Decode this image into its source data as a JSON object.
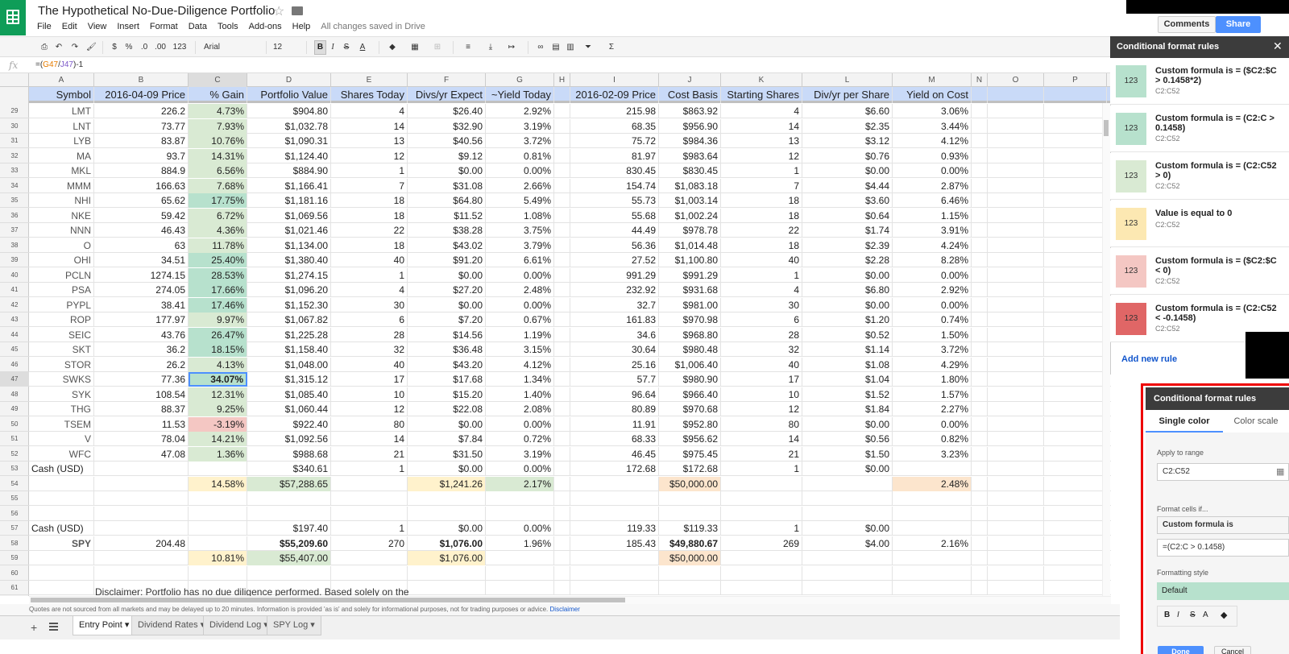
{
  "title": "The Hypothetical No-Due-Diligence Portfolio",
  "menu": [
    "File",
    "Edit",
    "View",
    "Insert",
    "Format",
    "Data",
    "Tools",
    "Add-ons",
    "Help"
  ],
  "save_status": "All changes saved in Drive",
  "comments_label": "Comments",
  "share_label": "Share",
  "toolbar": {
    "currency": "$",
    "percent": "%",
    "dec_less": ".0",
    "dec_more": ".00",
    "format_more": "123",
    "font": "Arial",
    "size": "12",
    "bold": "B",
    "italic": "I",
    "strike": "S",
    "textcolor": "A"
  },
  "formula_bar": {
    "fx": "fx",
    "eq": "=(",
    "ref1": "G47",
    "slash": "/",
    "ref2": "J47",
    "rest": ")-1"
  },
  "columns": [
    "A",
    "B",
    "C",
    "D",
    "E",
    "F",
    "G",
    "H",
    "I",
    "J",
    "K",
    "L",
    "M",
    "N",
    "O",
    "P"
  ],
  "header_row": [
    "Symbol",
    "2016-04-09 Price",
    "% Gain",
    "Portfolio Value",
    "Shares Today",
    "Divs/yr Expect",
    "~Yield Today",
    "",
    "2016-02-09 Price",
    "Cost Basis",
    "Starting Shares",
    "Div/yr per Share",
    "Yield on Cost"
  ],
  "rows": [
    {
      "n": "29",
      "c": [
        "LMT",
        "226.2",
        "4.73%",
        "$904.80",
        "4",
        "$26.40",
        "2.92%",
        "",
        "215.98",
        "$863.92",
        "4",
        "$6.60",
        "3.06%"
      ]
    },
    {
      "n": "30",
      "c": [
        "LNT",
        "73.77",
        "7.93%",
        "$1,032.78",
        "14",
        "$32.90",
        "3.19%",
        "",
        "68.35",
        "$956.90",
        "14",
        "$2.35",
        "3.44%"
      ]
    },
    {
      "n": "31",
      "c": [
        "LYB",
        "83.87",
        "10.76%",
        "$1,090.31",
        "13",
        "$40.56",
        "3.72%",
        "",
        "75.72",
        "$984.36",
        "13",
        "$3.12",
        "4.12%"
      ]
    },
    {
      "n": "32",
      "c": [
        "MA",
        "93.7",
        "14.31%",
        "$1,124.40",
        "12",
        "$9.12",
        "0.81%",
        "",
        "81.97",
        "$983.64",
        "12",
        "$0.76",
        "0.93%"
      ]
    },
    {
      "n": "33",
      "c": [
        "MKL",
        "884.9",
        "6.56%",
        "$884.90",
        "1",
        "$0.00",
        "0.00%",
        "",
        "830.45",
        "$830.45",
        "1",
        "$0.00",
        "0.00%"
      ]
    },
    {
      "n": "34",
      "c": [
        "MMM",
        "166.63",
        "7.68%",
        "$1,166.41",
        "7",
        "$31.08",
        "2.66%",
        "",
        "154.74",
        "$1,083.18",
        "7",
        "$4.44",
        "2.87%"
      ]
    },
    {
      "n": "35",
      "c": [
        "NHI",
        "65.62",
        "17.75%",
        "$1,181.16",
        "18",
        "$64.80",
        "5.49%",
        "",
        "55.73",
        "$1,003.14",
        "18",
        "$3.60",
        "6.46%"
      ]
    },
    {
      "n": "36",
      "c": [
        "NKE",
        "59.42",
        "6.72%",
        "$1,069.56",
        "18",
        "$11.52",
        "1.08%",
        "",
        "55.68",
        "$1,002.24",
        "18",
        "$0.64",
        "1.15%"
      ]
    },
    {
      "n": "37",
      "c": [
        "NNN",
        "46.43",
        "4.36%",
        "$1,021.46",
        "22",
        "$38.28",
        "3.75%",
        "",
        "44.49",
        "$978.78",
        "22",
        "$1.74",
        "3.91%"
      ]
    },
    {
      "n": "38",
      "c": [
        "O",
        "63",
        "11.78%",
        "$1,134.00",
        "18",
        "$43.02",
        "3.79%",
        "",
        "56.36",
        "$1,014.48",
        "18",
        "$2.39",
        "4.24%"
      ]
    },
    {
      "n": "39",
      "c": [
        "OHI",
        "34.51",
        "25.40%",
        "$1,380.40",
        "40",
        "$91.20",
        "6.61%",
        "",
        "27.52",
        "$1,100.80",
        "40",
        "$2.28",
        "8.28%"
      ]
    },
    {
      "n": "40",
      "c": [
        "PCLN",
        "1274.15",
        "28.53%",
        "$1,274.15",
        "1",
        "$0.00",
        "0.00%",
        "",
        "991.29",
        "$991.29",
        "1",
        "$0.00",
        "0.00%"
      ]
    },
    {
      "n": "41",
      "c": [
        "PSA",
        "274.05",
        "17.66%",
        "$1,096.20",
        "4",
        "$27.20",
        "2.48%",
        "",
        "232.92",
        "$931.68",
        "4",
        "$6.80",
        "2.92%"
      ]
    },
    {
      "n": "42",
      "c": [
        "PYPL",
        "38.41",
        "17.46%",
        "$1,152.30",
        "30",
        "$0.00",
        "0.00%",
        "",
        "32.7",
        "$981.00",
        "30",
        "$0.00",
        "0.00%"
      ]
    },
    {
      "n": "43",
      "c": [
        "ROP",
        "177.97",
        "9.97%",
        "$1,067.82",
        "6",
        "$7.20",
        "0.67%",
        "",
        "161.83",
        "$970.98",
        "6",
        "$1.20",
        "0.74%"
      ]
    },
    {
      "n": "44",
      "c": [
        "SEIC",
        "43.76",
        "26.47%",
        "$1,225.28",
        "28",
        "$14.56",
        "1.19%",
        "",
        "34.6",
        "$968.80",
        "28",
        "$0.52",
        "1.50%"
      ]
    },
    {
      "n": "45",
      "c": [
        "SKT",
        "36.2",
        "18.15%",
        "$1,158.40",
        "32",
        "$36.48",
        "3.15%",
        "",
        "30.64",
        "$980.48",
        "32",
        "$1.14",
        "3.72%"
      ]
    },
    {
      "n": "46",
      "c": [
        "STOR",
        "26.2",
        "4.13%",
        "$1,048.00",
        "40",
        "$43.20",
        "4.12%",
        "",
        "25.16",
        "$1,006.40",
        "40",
        "$1.08",
        "4.29%"
      ]
    },
    {
      "n": "47",
      "c": [
        "SWKS",
        "77.36",
        "34.07%",
        "$1,315.12",
        "17",
        "$17.68",
        "1.34%",
        "",
        "57.7",
        "$980.90",
        "17",
        "$1.04",
        "1.80%"
      ]
    },
    {
      "n": "48",
      "c": [
        "SYK",
        "108.54",
        "12.31%",
        "$1,085.40",
        "10",
        "$15.20",
        "1.40%",
        "",
        "96.64",
        "$966.40",
        "10",
        "$1.52",
        "1.57%"
      ]
    },
    {
      "n": "49",
      "c": [
        "THG",
        "88.37",
        "9.25%",
        "$1,060.44",
        "12",
        "$22.08",
        "2.08%",
        "",
        "80.89",
        "$970.68",
        "12",
        "$1.84",
        "2.27%"
      ]
    },
    {
      "n": "50",
      "c": [
        "TSEM",
        "11.53",
        "-3.19%",
        "$922.40",
        "80",
        "$0.00",
        "0.00%",
        "",
        "11.91",
        "$952.80",
        "80",
        "$0.00",
        "0.00%"
      ]
    },
    {
      "n": "51",
      "c": [
        "V",
        "78.04",
        "14.21%",
        "$1,092.56",
        "14",
        "$7.84",
        "0.72%",
        "",
        "68.33",
        "$956.62",
        "14",
        "$0.56",
        "0.82%"
      ]
    },
    {
      "n": "52",
      "c": [
        "WFC",
        "47.08",
        "1.36%",
        "$988.68",
        "21",
        "$31.50",
        "3.19%",
        "",
        "46.45",
        "$975.45",
        "21",
        "$1.50",
        "3.23%"
      ]
    },
    {
      "n": "53",
      "c": [
        "Cash (USD)",
        "",
        "",
        "$340.61",
        "1",
        "$0.00",
        "0.00%",
        "",
        "172.68",
        "$172.68",
        "1",
        "$0.00",
        ""
      ]
    },
    {
      "n": "54",
      "c": [
        "",
        "",
        "14.58%",
        "$57,288.65",
        "",
        "$1,241.26",
        "2.17%",
        "",
        "",
        "$50,000.00",
        "",
        "",
        "2.48%"
      ]
    },
    {
      "n": "55",
      "c": [
        "",
        "",
        "",
        "",
        "",
        "",
        "",
        "",
        "",
        "",
        "",
        "",
        ""
      ]
    },
    {
      "n": "56",
      "c": [
        "",
        "",
        "",
        "",
        "",
        "",
        "",
        "",
        "",
        "",
        "",
        "",
        ""
      ]
    },
    {
      "n": "57",
      "c": [
        "Cash (USD)",
        "",
        "",
        "$197.40",
        "1",
        "$0.00",
        "0.00%",
        "",
        "119.33",
        "$119.33",
        "1",
        "$0.00",
        ""
      ]
    },
    {
      "n": "58",
      "c": [
        "SPY",
        "204.48",
        "",
        "$55,209.60",
        "270",
        "$1,076.00",
        "1.96%",
        "",
        "185.43",
        "$49,880.67",
        "269",
        "$4.00",
        "2.16%"
      ]
    },
    {
      "n": "59",
      "c": [
        "",
        "",
        "10.81%",
        "$55,407.00",
        "",
        "$1,076.00",
        "",
        "",
        "",
        "$50,000.00",
        "",
        "",
        ""
      ]
    },
    {
      "n": "60",
      "c": [
        "",
        "",
        "",
        "",
        "",
        "",
        "",
        "",
        "",
        "",
        "",
        "",
        ""
      ]
    },
    {
      "n": "61",
      "c": [
        "",
        "",
        "",
        "",
        "",
        "",
        "",
        "",
        "",
        "",
        "",
        "",
        ""
      ]
    }
  ],
  "disclaimer": "Disclaimer: Portfolio has no due diligence performed. Based solely on the",
  "quotes_notice": "Quotes are not sourced from all markets and may be delayed up to 20 minutes. Information is provided 'as is' and solely for informational purposes, not for trading purposes or advice.",
  "quotes_link": "Disclaimer",
  "sheet_tabs": [
    "Entry Point",
    "Dividend Rates",
    "Dividend Log",
    "SPY Log"
  ],
  "cf_panel": {
    "title": "Conditional format rules",
    "rules": [
      {
        "desc": "Custom formula is = ($C2:$C > 0.1458*2)",
        "range": "C2:C52",
        "swatch": "#b7e1cd",
        "sample": "123"
      },
      {
        "desc": "Custom formula is = (C2:C > 0.1458)",
        "range": "C2:C52",
        "swatch": "#b7e1cd",
        "sample": "123"
      },
      {
        "desc": "Custom formula is = (C2:C52 > 0)",
        "range": "C2:C52",
        "swatch": "#d9ead3",
        "sample": "123"
      },
      {
        "desc": "Value is equal to 0",
        "range": "C2:C52",
        "swatch": "#fce8b2",
        "sample": "123"
      },
      {
        "desc": "Custom formula is = ($C2:$C < 0)",
        "range": "C2:C52",
        "swatch": "#f4c7c3",
        "sample": "123"
      },
      {
        "desc": "Custom formula is = (C2:C52 < -0.1458)",
        "range": "C2:C52",
        "swatch": "#e06666",
        "sample": "123"
      }
    ],
    "add_rule": "Add new rule"
  },
  "cf_editor": {
    "title": "Conditional format rules",
    "tab_single": "Single color",
    "tab_scale": "Color scale",
    "apply_label": "Apply to range",
    "apply_value": "C2:C52",
    "format_if_label": "Format cells if...",
    "condition": "Custom formula is",
    "formula_value": "=(C2:C > 0.1458)",
    "style_label": "Formatting style",
    "style_value": "Default",
    "done": "Done",
    "cancel": "Cancel"
  },
  "colors": {
    "header_blue": "#c9daf8",
    "green_light": "#d9ead3",
    "green_mid": "#b7e1cd",
    "yellow": "#fff2cc",
    "orange": "#fce5cd",
    "red_light": "#f4c7c3",
    "accent": "#4d90fe"
  }
}
